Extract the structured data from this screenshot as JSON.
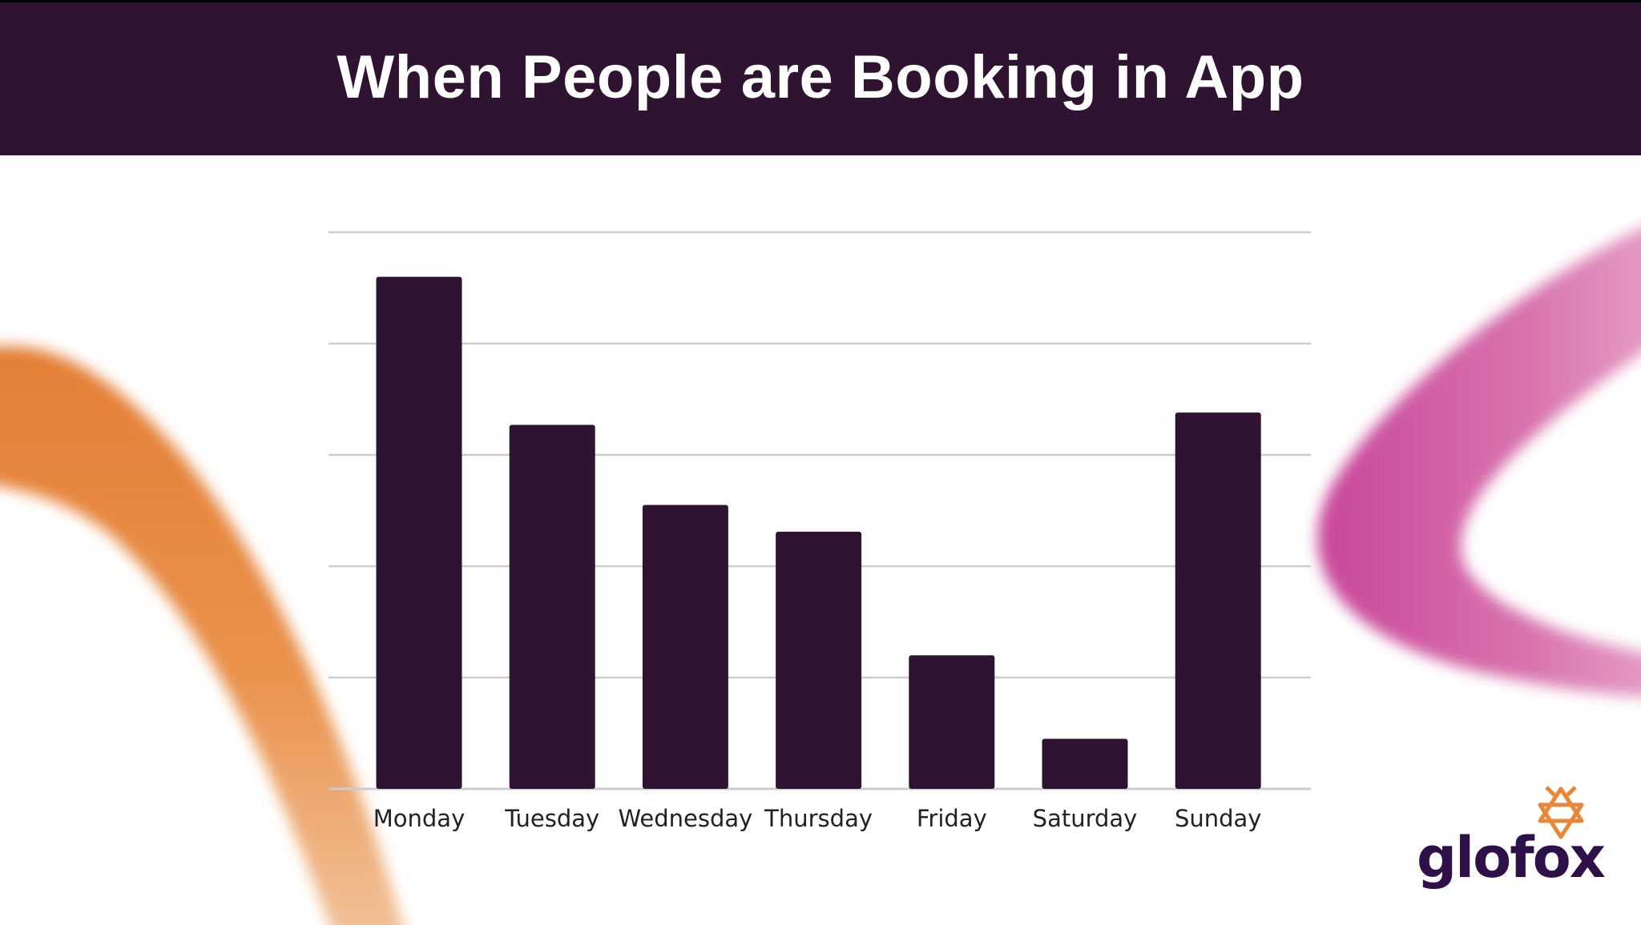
{
  "slide": {
    "title": "When People are Booking in App"
  },
  "colors": {
    "header_bg": "#2e1430",
    "bar": "#2e1430",
    "grid": "#cccccc",
    "accent_orange": "#e8873a",
    "accent_pink": "#cf5a9a",
    "logo_text": "#2e1148"
  },
  "chart_data": {
    "type": "bar",
    "title": "",
    "xlabel": "",
    "ylabel": "",
    "categories": [
      "Monday",
      "Tuesday",
      "Wednesday",
      "Thursday",
      "Friday",
      "Saturday",
      "Sunday"
    ],
    "values": [
      4.6,
      3.27,
      2.55,
      2.31,
      1.2,
      0.45,
      3.38
    ],
    "ylim": [
      0,
      5
    ],
    "grid": true,
    "y_tick_labels_shown": false,
    "legend": "none"
  },
  "logo": {
    "text": "glofox",
    "icon": "fox-star-icon"
  }
}
